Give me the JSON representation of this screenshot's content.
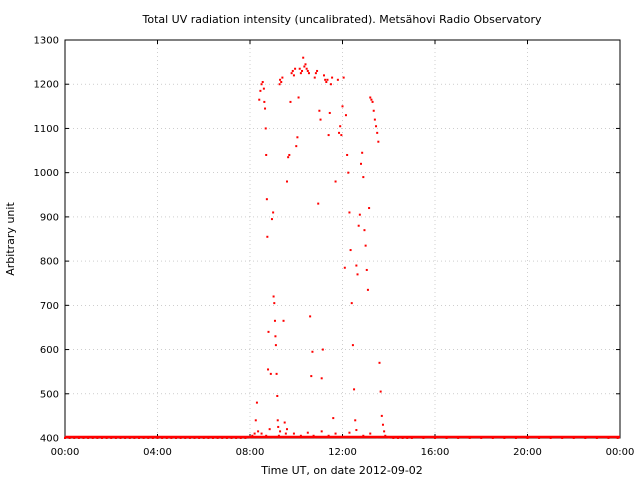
{
  "chart_data": {
    "type": "scatter",
    "title": "Total UV radiation intensity (uncalibrated). Metsähovi Radio Observatory",
    "xlabel": "Time UT, on date 2012-09-02",
    "ylabel": "Arbitrary unit",
    "x_unit": "hours",
    "xlim": [
      0,
      24
    ],
    "ylim": [
      400,
      1300
    ],
    "x_ticks": [
      {
        "value": 0,
        "label": "00:00"
      },
      {
        "value": 4,
        "label": "04:00"
      },
      {
        "value": 8,
        "label": "08:00"
      },
      {
        "value": 12,
        "label": "12:00"
      },
      {
        "value": 16,
        "label": "16:00"
      },
      {
        "value": 20,
        "label": "20:00"
      },
      {
        "value": 24,
        "label": "00:00"
      }
    ],
    "y_ticks": [
      {
        "value": 400,
        "label": "400"
      },
      {
        "value": 500,
        "label": "500"
      },
      {
        "value": 600,
        "label": "600"
      },
      {
        "value": 700,
        "label": "700"
      },
      {
        "value": 800,
        "label": "800"
      },
      {
        "value": 900,
        "label": "900"
      },
      {
        "value": 1000,
        "label": "1000"
      },
      {
        "value": 1100,
        "label": "1100"
      },
      {
        "value": 1200,
        "label": "1200"
      },
      {
        "value": 1300,
        "label": "1300"
      }
    ],
    "grid": true,
    "marker_color": "#ff0000",
    "series": [
      {
        "points": [
          [
            0.0,
            400
          ],
          [
            0.2,
            400
          ],
          [
            0.4,
            400
          ],
          [
            0.6,
            400
          ],
          [
            0.8,
            400
          ],
          [
            1.0,
            400
          ],
          [
            1.2,
            400
          ],
          [
            1.4,
            400
          ],
          [
            1.6,
            400
          ],
          [
            1.8,
            400
          ],
          [
            2.0,
            400
          ],
          [
            2.2,
            400
          ],
          [
            2.4,
            400
          ],
          [
            2.6,
            400
          ],
          [
            2.8,
            400
          ],
          [
            3.0,
            400
          ],
          [
            3.2,
            400
          ],
          [
            3.4,
            400
          ],
          [
            3.6,
            400
          ],
          [
            3.8,
            400
          ],
          [
            4.0,
            400
          ],
          [
            4.2,
            400
          ],
          [
            4.4,
            400
          ],
          [
            4.6,
            400
          ],
          [
            4.8,
            400
          ],
          [
            5.0,
            400
          ],
          [
            5.2,
            400
          ],
          [
            5.4,
            400
          ],
          [
            5.6,
            400
          ],
          [
            5.8,
            400
          ],
          [
            6.0,
            400
          ],
          [
            6.2,
            400
          ],
          [
            6.4,
            400
          ],
          [
            6.6,
            400
          ],
          [
            6.8,
            400
          ],
          [
            7.0,
            400
          ],
          [
            7.2,
            400
          ],
          [
            7.4,
            400
          ],
          [
            7.6,
            400
          ],
          [
            7.8,
            400
          ],
          [
            8.0,
            402
          ],
          [
            8.1,
            405
          ],
          [
            8.2,
            410
          ],
          [
            8.25,
            440
          ],
          [
            8.3,
            480
          ],
          [
            8.35,
            415
          ],
          [
            8.4,
            1165
          ],
          [
            8.45,
            1185
          ],
          [
            8.5,
            1200
          ],
          [
            8.55,
            1205
          ],
          [
            8.6,
            1190
          ],
          [
            8.62,
            1160
          ],
          [
            8.65,
            1145
          ],
          [
            8.68,
            1100
          ],
          [
            8.7,
            1040
          ],
          [
            8.73,
            940
          ],
          [
            8.75,
            855
          ],
          [
            8.78,
            555
          ],
          [
            8.8,
            640
          ],
          [
            8.85,
            420
          ],
          [
            8.9,
            545
          ],
          [
            8.95,
            895
          ],
          [
            9.0,
            910
          ],
          [
            9.02,
            720
          ],
          [
            9.05,
            705
          ],
          [
            9.08,
            665
          ],
          [
            9.1,
            630
          ],
          [
            9.12,
            610
          ],
          [
            9.15,
            545
          ],
          [
            9.18,
            495
          ],
          [
            9.2,
            440
          ],
          [
            9.22,
            425
          ],
          [
            9.25,
            405
          ],
          [
            9.28,
            1200
          ],
          [
            9.3,
            1210
          ],
          [
            9.35,
            1205
          ],
          [
            9.4,
            1215
          ],
          [
            9.45,
            665
          ],
          [
            9.5,
            435
          ],
          [
            9.55,
            410
          ],
          [
            9.6,
            980
          ],
          [
            9.65,
            1035
          ],
          [
            9.7,
            1040
          ],
          [
            9.75,
            1160
          ],
          [
            9.8,
            1225
          ],
          [
            9.85,
            1230
          ],
          [
            9.9,
            1220
          ],
          [
            9.95,
            1235
          ],
          [
            10.0,
            1060
          ],
          [
            10.05,
            1080
          ],
          [
            10.1,
            1170
          ],
          [
            10.15,
            1235
          ],
          [
            10.2,
            1225
          ],
          [
            10.25,
            1230
          ],
          [
            10.3,
            1260
          ],
          [
            10.35,
            1240
          ],
          [
            10.4,
            1245
          ],
          [
            10.45,
            1235
          ],
          [
            10.5,
            1230
          ],
          [
            10.55,
            1225
          ],
          [
            10.6,
            675
          ],
          [
            10.65,
            540
          ],
          [
            10.7,
            595
          ],
          [
            10.75,
            405
          ],
          [
            10.8,
            1215
          ],
          [
            10.85,
            1225
          ],
          [
            10.9,
            1230
          ],
          [
            10.95,
            930
          ],
          [
            11.0,
            1140
          ],
          [
            11.05,
            1120
          ],
          [
            11.1,
            535
          ],
          [
            11.15,
            600
          ],
          [
            11.2,
            1220
          ],
          [
            11.25,
            1210
          ],
          [
            11.3,
            1205
          ],
          [
            11.35,
            1210
          ],
          [
            11.4,
            1085
          ],
          [
            11.45,
            1135
          ],
          [
            11.5,
            1200
          ],
          [
            11.55,
            1215
          ],
          [
            11.6,
            445
          ],
          [
            11.7,
            980
          ],
          [
            11.8,
            1210
          ],
          [
            11.85,
            1090
          ],
          [
            11.9,
            1105
          ],
          [
            11.95,
            1085
          ],
          [
            12.0,
            1150
          ],
          [
            12.05,
            1215
          ],
          [
            12.1,
            785
          ],
          [
            12.15,
            1130
          ],
          [
            12.2,
            1040
          ],
          [
            12.25,
            1000
          ],
          [
            12.3,
            910
          ],
          [
            12.35,
            825
          ],
          [
            12.4,
            705
          ],
          [
            12.45,
            610
          ],
          [
            12.5,
            510
          ],
          [
            12.55,
            440
          ],
          [
            12.6,
            790
          ],
          [
            12.65,
            770
          ],
          [
            12.7,
            880
          ],
          [
            12.75,
            905
          ],
          [
            12.8,
            1020
          ],
          [
            12.85,
            1045
          ],
          [
            12.9,
            990
          ],
          [
            12.95,
            870
          ],
          [
            13.0,
            835
          ],
          [
            13.05,
            780
          ],
          [
            13.1,
            735
          ],
          [
            13.15,
            920
          ],
          [
            13.2,
            1170
          ],
          [
            13.25,
            1165
          ],
          [
            13.3,
            1160
          ],
          [
            13.35,
            1140
          ],
          [
            13.4,
            1120
          ],
          [
            13.45,
            1105
          ],
          [
            13.5,
            1090
          ],
          [
            13.55,
            1070
          ],
          [
            13.6,
            570
          ],
          [
            13.65,
            505
          ],
          [
            13.7,
            450
          ],
          [
            13.75,
            430
          ],
          [
            13.8,
            415
          ],
          [
            13.85,
            405
          ],
          [
            14.0,
            401
          ],
          [
            14.2,
            400
          ],
          [
            14.4,
            400
          ],
          [
            14.6,
            400
          ],
          [
            14.8,
            400
          ],
          [
            15.0,
            400
          ],
          [
            15.5,
            400
          ],
          [
            16.0,
            400
          ],
          [
            16.5,
            400
          ],
          [
            17.0,
            400
          ],
          [
            17.5,
            400
          ],
          [
            18.0,
            400
          ],
          [
            18.5,
            400
          ],
          [
            19.0,
            400
          ],
          [
            19.5,
            400
          ],
          [
            20.0,
            400
          ],
          [
            20.5,
            400
          ],
          [
            21.0,
            400
          ],
          [
            21.5,
            400
          ],
          [
            22.0,
            400
          ],
          [
            22.5,
            400
          ],
          [
            23.0,
            400
          ],
          [
            23.5,
            400
          ],
          [
            23.9,
            400
          ],
          [
            8.5,
            410
          ],
          [
            8.7,
            405
          ],
          [
            9.0,
            402
          ],
          [
            9.3,
            415
          ],
          [
            9.6,
            420
          ],
          [
            9.9,
            410
          ],
          [
            10.2,
            405
          ],
          [
            10.5,
            412
          ],
          [
            10.8,
            402
          ],
          [
            11.1,
            415
          ],
          [
            11.4,
            405
          ],
          [
            11.7,
            410
          ],
          [
            12.0,
            402
          ],
          [
            12.3,
            412
          ],
          [
            12.6,
            418
          ],
          [
            12.9,
            405
          ],
          [
            13.2,
            410
          ],
          [
            13.5,
            402
          ]
        ]
      }
    ]
  }
}
